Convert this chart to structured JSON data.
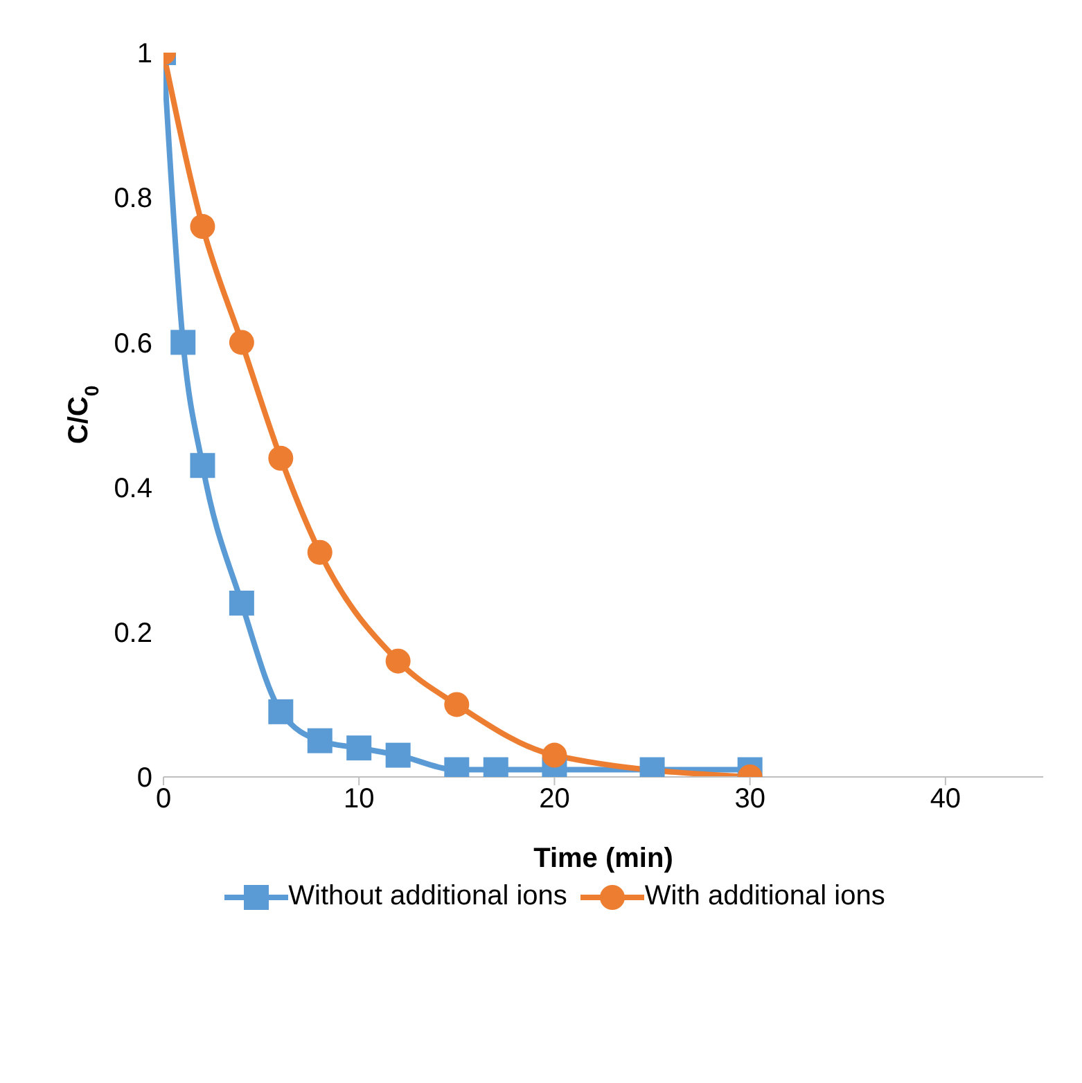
{
  "chart_data": {
    "type": "line",
    "xlabel": "Time (min)",
    "ylabel": "C/C$_{0}$",
    "xlim": [
      0,
      45
    ],
    "xticks": [
      0,
      10,
      20,
      30,
      40
    ],
    "ylim": [
      0,
      1
    ],
    "yticks": [
      0,
      0.2,
      0.4,
      0.6,
      0.8,
      1
    ],
    "grid": false,
    "legend": "bottom",
    "series": [
      {
        "name": "Without additional ions",
        "color": "#5b9bd5",
        "marker": "square",
        "x": [
          0,
          1,
          2,
          4,
          6,
          8,
          10,
          12,
          15,
          17,
          20,
          25,
          30
        ],
        "values": [
          1,
          0.6,
          0.43,
          0.24,
          0.09,
          0.05,
          0.04,
          0.03,
          0.01,
          0.01,
          0.01,
          0.01,
          0.01
        ]
      },
      {
        "name": "With additional ions",
        "color": "#ed7d31",
        "marker": "circle",
        "x": [
          0,
          2,
          4,
          6,
          8,
          12,
          15,
          20,
          30
        ],
        "values": [
          1,
          0.76,
          0.6,
          0.44,
          0.31,
          0.16,
          0.1,
          0.03,
          0
        ]
      }
    ]
  }
}
